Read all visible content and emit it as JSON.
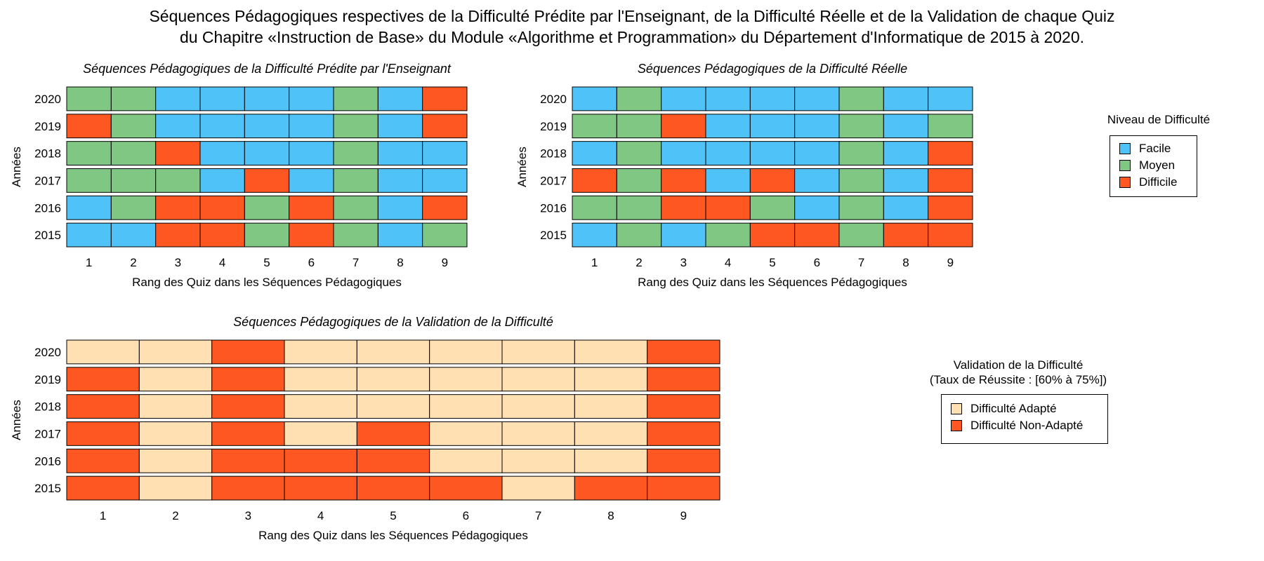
{
  "title": {
    "line1": "Séquences Pédagogiques respectives de la Difficulté Prédite par l'Enseignant, de la Difficulté Réelle et de la Validation de chaque Quiz",
    "line2": "du Chapitre «Instruction de Base» du Module «Algorithme et Programmation» du Département d'Informatique de 2015 à 2020."
  },
  "colors": {
    "Facile": "#4FC3F7",
    "Moyen": "#81C784",
    "Difficile": "#FF5722",
    "Adapte": "#FFE0B2",
    "NonAdapte": "#FF5722"
  },
  "legend_difficulty": {
    "title": "Niveau de Difficulté",
    "items": [
      {
        "label": "Facile",
        "color": "#4FC3F7"
      },
      {
        "label": "Moyen",
        "color": "#81C784"
      },
      {
        "label": "Difficile",
        "color": "#FF5722"
      }
    ]
  },
  "legend_validation": {
    "title_line1": "Validation de la Difficulté",
    "title_line2": "(Taux de Réussite : [60% à 75%])",
    "items": [
      {
        "label": "Difficulté Adapté",
        "color": "#FFE0B2"
      },
      {
        "label": "Difficulté Non-Adapté",
        "color": "#FF5722"
      }
    ]
  },
  "chart_data": [
    {
      "type": "heatmap",
      "title": "Séquences Pédagogiques de la Difficulté Prédite par l'Enseignant",
      "xlabel": "Rang des Quiz dans les Séquences Pédagogiques",
      "ylabel": "Années",
      "x": [
        "1",
        "2",
        "3",
        "4",
        "5",
        "6",
        "7",
        "8",
        "9"
      ],
      "years": [
        "2020",
        "2019",
        "2018",
        "2017",
        "2016",
        "2015"
      ],
      "rows": [
        [
          "Moyen",
          "Moyen",
          "Facile",
          "Facile",
          "Facile",
          "Facile",
          "Moyen",
          "Facile",
          "Difficile"
        ],
        [
          "Difficile",
          "Moyen",
          "Facile",
          "Facile",
          "Facile",
          "Facile",
          "Moyen",
          "Facile",
          "Difficile"
        ],
        [
          "Moyen",
          "Moyen",
          "Difficile",
          "Facile",
          "Facile",
          "Facile",
          "Moyen",
          "Facile",
          "Facile"
        ],
        [
          "Moyen",
          "Moyen",
          "Moyen",
          "Facile",
          "Difficile",
          "Facile",
          "Moyen",
          "Facile",
          "Facile"
        ],
        [
          "Facile",
          "Moyen",
          "Difficile",
          "Difficile",
          "Moyen",
          "Difficile",
          "Moyen",
          "Facile",
          "Difficile"
        ],
        [
          "Facile",
          "Facile",
          "Difficile",
          "Difficile",
          "Moyen",
          "Difficile",
          "Moyen",
          "Facile",
          "Moyen"
        ]
      ]
    },
    {
      "type": "heatmap",
      "title": "Séquences Pédagogiques de la Difficulté Réelle",
      "xlabel": "Rang des Quiz dans les Séquences Pédagogiques",
      "ylabel": "Années",
      "x": [
        "1",
        "2",
        "3",
        "4",
        "5",
        "6",
        "7",
        "8",
        "9"
      ],
      "years": [
        "2020",
        "2019",
        "2018",
        "2017",
        "2016",
        "2015"
      ],
      "rows": [
        [
          "Facile",
          "Moyen",
          "Facile",
          "Facile",
          "Facile",
          "Facile",
          "Moyen",
          "Facile",
          "Facile"
        ],
        [
          "Moyen",
          "Moyen",
          "Difficile",
          "Facile",
          "Facile",
          "Facile",
          "Moyen",
          "Facile",
          "Moyen"
        ],
        [
          "Facile",
          "Moyen",
          "Facile",
          "Facile",
          "Facile",
          "Facile",
          "Moyen",
          "Facile",
          "Difficile"
        ],
        [
          "Difficile",
          "Moyen",
          "Difficile",
          "Facile",
          "Difficile",
          "Facile",
          "Moyen",
          "Facile",
          "Difficile"
        ],
        [
          "Moyen",
          "Moyen",
          "Difficile",
          "Difficile",
          "Moyen",
          "Facile",
          "Moyen",
          "Facile",
          "Difficile"
        ],
        [
          "Facile",
          "Moyen",
          "Facile",
          "Moyen",
          "Difficile",
          "Difficile",
          "Moyen",
          "Difficile",
          "Difficile"
        ]
      ]
    },
    {
      "type": "heatmap",
      "title": "Séquences Pédagogiques de la Validation de la Difficulté",
      "xlabel": "Rang des Quiz dans les Séquences Pédagogiques",
      "ylabel": "Années",
      "x": [
        "1",
        "2",
        "3",
        "4",
        "5",
        "6",
        "7",
        "8",
        "9"
      ],
      "years": [
        "2020",
        "2019",
        "2018",
        "2017",
        "2016",
        "2015"
      ],
      "rows": [
        [
          "Adapte",
          "Adapte",
          "NonAdapte",
          "Adapte",
          "Adapte",
          "Adapte",
          "Adapte",
          "Adapte",
          "NonAdapte"
        ],
        [
          "NonAdapte",
          "Adapte",
          "NonAdapte",
          "Adapte",
          "Adapte",
          "Adapte",
          "Adapte",
          "Adapte",
          "NonAdapte"
        ],
        [
          "NonAdapte",
          "Adapte",
          "NonAdapte",
          "Adapte",
          "Adapte",
          "Adapte",
          "Adapte",
          "Adapte",
          "NonAdapte"
        ],
        [
          "NonAdapte",
          "Adapte",
          "NonAdapte",
          "Adapte",
          "NonAdapte",
          "Adapte",
          "Adapte",
          "Adapte",
          "NonAdapte"
        ],
        [
          "NonAdapte",
          "Adapte",
          "NonAdapte",
          "NonAdapte",
          "NonAdapte",
          "Adapte",
          "Adapte",
          "Adapte",
          "NonAdapte"
        ],
        [
          "NonAdapte",
          "Adapte",
          "NonAdapte",
          "NonAdapte",
          "NonAdapte",
          "NonAdapte",
          "Adapte",
          "NonAdapte",
          "NonAdapte"
        ]
      ]
    }
  ]
}
